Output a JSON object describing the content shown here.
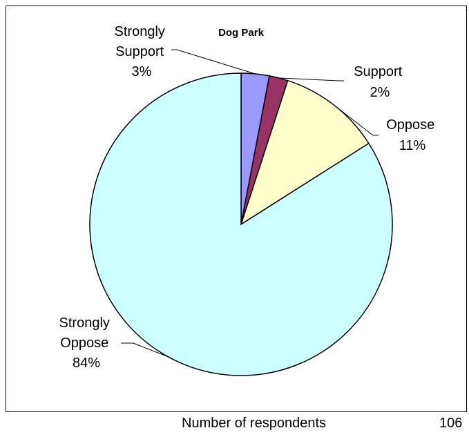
{
  "chart_data": {
    "type": "pie",
    "title": "Dog Park",
    "slices": [
      {
        "name": "Strongly Support",
        "label_lines": [
          "Strongly",
          "Support",
          "3%"
        ],
        "value": 3,
        "color": "#9999ff"
      },
      {
        "name": "Support",
        "label_lines": [
          "Support",
          "2%"
        ],
        "value": 2,
        "color": "#993366"
      },
      {
        "name": "Oppose",
        "label_lines": [
          "Oppose",
          "11%"
        ],
        "value": 11,
        "color": "#ffffcc"
      },
      {
        "name": "Strongly Oppose",
        "label_lines": [
          "Strongly",
          "Oppose",
          "84%"
        ],
        "value": 84,
        "color": "#ccffff"
      }
    ]
  },
  "footer": {
    "label": "Number of respondents",
    "value": "106"
  }
}
